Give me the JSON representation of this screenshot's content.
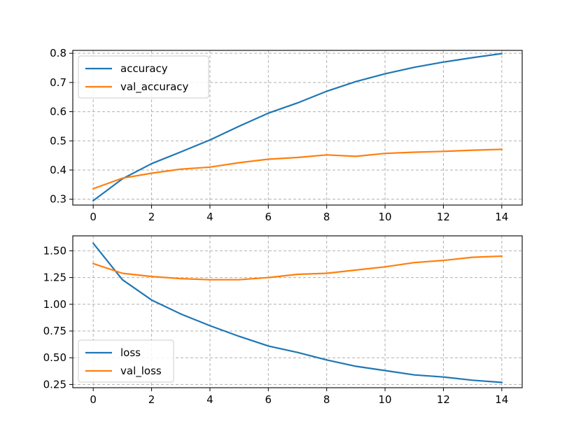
{
  "chart_data": [
    {
      "type": "line",
      "title": "",
      "xlabel": "",
      "ylabel": "",
      "x": [
        0,
        1,
        2,
        3,
        4,
        5,
        6,
        7,
        8,
        9,
        10,
        11,
        12,
        13,
        14
      ],
      "xlim": [
        -0.7,
        14.7
      ],
      "ylim": [
        0.28,
        0.81
      ],
      "xticks": [
        0,
        2,
        4,
        6,
        8,
        10,
        12,
        14
      ],
      "xtick_labels": [
        "0",
        "2",
        "4",
        "6",
        "8",
        "10",
        "12",
        "14"
      ],
      "yticks": [
        0.3,
        0.4,
        0.5,
        0.6,
        0.7,
        0.8
      ],
      "ytick_labels": [
        "0.3",
        "0.4",
        "0.5",
        "0.6",
        "0.7",
        "0.8"
      ],
      "grid": true,
      "legend_position": "top-left",
      "series": [
        {
          "name": "accuracy",
          "color": "#1f77b4",
          "values": [
            0.295,
            0.37,
            0.422,
            0.462,
            0.503,
            0.55,
            0.595,
            0.63,
            0.67,
            0.703,
            0.73,
            0.752,
            0.77,
            0.785,
            0.799
          ]
        },
        {
          "name": "val_accuracy",
          "color": "#ff7f0e",
          "values": [
            0.336,
            0.372,
            0.389,
            0.403,
            0.41,
            0.425,
            0.437,
            0.443,
            0.452,
            0.447,
            0.457,
            0.461,
            0.464,
            0.468,
            0.471
          ]
        }
      ]
    },
    {
      "type": "line",
      "title": "",
      "xlabel": "",
      "ylabel": "",
      "x": [
        0,
        1,
        2,
        3,
        4,
        5,
        6,
        7,
        8,
        9,
        10,
        11,
        12,
        13,
        14
      ],
      "xlim": [
        -0.7,
        14.7
      ],
      "ylim": [
        0.22,
        1.64
      ],
      "xticks": [
        0,
        2,
        4,
        6,
        8,
        10,
        12,
        14
      ],
      "xtick_labels": [
        "0",
        "2",
        "4",
        "6",
        "8",
        "10",
        "12",
        "14"
      ],
      "yticks": [
        0.25,
        0.5,
        0.75,
        1.0,
        1.25,
        1.5
      ],
      "ytick_labels": [
        "0.25",
        "0.50",
        "0.75",
        "1.00",
        "1.25",
        "1.50"
      ],
      "grid": true,
      "legend_position": "bottom-left",
      "series": [
        {
          "name": "loss",
          "color": "#1f77b4",
          "values": [
            1.57,
            1.23,
            1.04,
            0.91,
            0.8,
            0.7,
            0.61,
            0.55,
            0.48,
            0.42,
            0.38,
            0.34,
            0.32,
            0.29,
            0.27
          ]
        },
        {
          "name": "val_loss",
          "color": "#ff7f0e",
          "values": [
            1.38,
            1.29,
            1.26,
            1.24,
            1.23,
            1.23,
            1.25,
            1.28,
            1.29,
            1.32,
            1.35,
            1.39,
            1.41,
            1.44,
            1.45
          ]
        }
      ]
    }
  ]
}
